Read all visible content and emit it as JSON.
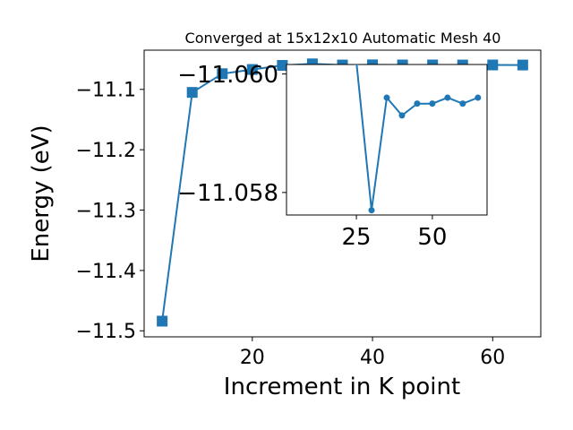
{
  "colors": {
    "series": "#1f77b4",
    "axes": "#000000",
    "background": "#ffffff"
  },
  "chart_data": [
    {
      "type": "line",
      "title": "Converged at 15x12x10 Automatic Mesh 40",
      "xlabel": "Increment in K point",
      "ylabel": "Energy (eV)",
      "xlim": [
        2,
        68
      ],
      "ylim": [
        -11.51,
        -11.035
      ],
      "xticks": [
        20,
        40,
        60
      ],
      "yticks": [
        -11.5,
        -11.4,
        -11.3,
        -11.2,
        -11.1
      ],
      "ytick_labels": [
        "−11.5",
        "−11.4",
        "−11.3",
        "−11.2",
        "−11.1"
      ],
      "grid": false,
      "marker": "square",
      "series": [
        {
          "x": [
            5,
            10,
            15,
            20,
            25,
            30,
            35,
            40,
            45,
            50,
            55,
            60,
            65
          ],
          "y": [
            -11.484,
            -11.105,
            -11.074,
            -11.067,
            -11.0602,
            -11.0577,
            -11.0596,
            -11.0593,
            -11.0595,
            -11.0595,
            -11.0596,
            -11.0595,
            -11.0596
          ]
        }
      ]
    },
    {
      "type": "line",
      "role": "inset",
      "xlim": [
        2,
        68
      ],
      "ylim": [
        -11.05762,
        -11.06016
      ],
      "xticks": [
        25,
        50
      ],
      "yticks": [
        -11.06,
        -11.058
      ],
      "ytick_labels": [
        "−11.060",
        "−11.058"
      ],
      "grid": false,
      "marker": "circle",
      "series": [
        {
          "x": [
            25,
            30,
            35,
            40,
            45,
            50,
            55,
            60,
            65
          ],
          "y": [
            -11.0602,
            -11.0577,
            -11.0596,
            -11.0593,
            -11.0595,
            -11.0595,
            -11.0596,
            -11.0595,
            -11.0596
          ]
        }
      ]
    }
  ]
}
